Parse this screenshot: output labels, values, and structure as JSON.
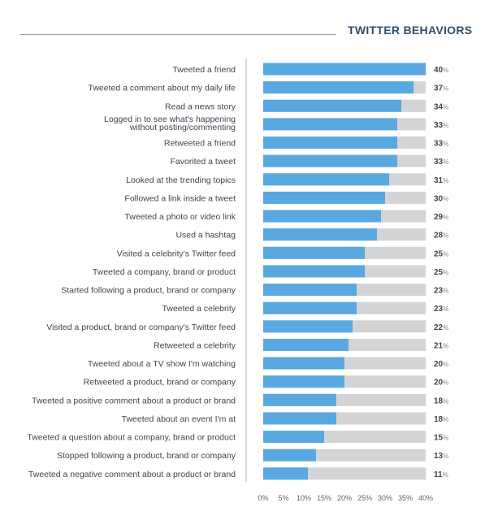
{
  "header": {
    "title": "TWITTER BEHAVIORS"
  },
  "chart_data": {
    "type": "bar",
    "orientation": "horizontal",
    "stacked_background": true,
    "title": "TWITTER BEHAVIORS",
    "xlabel": "",
    "ylabel": "",
    "xlim": [
      0,
      40
    ],
    "x_ticks": [
      "0%",
      "5%",
      "10%",
      "15%",
      "20%",
      "25%",
      "30%",
      "35%",
      "40%"
    ],
    "value_suffix": "%",
    "colors": {
      "bar": "#5aa8e0",
      "track": "#d3d4d6",
      "label": "#3c4650",
      "title": "#2f4f69"
    },
    "categories": [
      "Tweeted a friend",
      "Tweeted a comment about my daily life",
      "Read a news story",
      "Logged in to see what's happening|without posting/commenting",
      "Retweeted a friend",
      "Favorited a tweet",
      "Looked at the trending topics",
      "Followed a link inside a tweet",
      "Tweeted a photo or video link",
      "Used a hashtag",
      "Visited a celebrity's Twitter feed",
      "Tweeted a company, brand or product",
      "Started following a product, brand or company",
      "Tweeted a celebrity",
      "Visited a product, brand or company's Twitter feed",
      "Retweeted a celebrity",
      "Tweeted about a TV show I'm watching",
      "Retweeted a product, brand or company",
      "Tweeted a positive comment about a product or brand",
      "Tweeted about an event I'm at",
      "Tweeted a question about a company, brand or product",
      "Stopped following a product, brand or company",
      "Tweeted a negative comment about a product or brand"
    ],
    "values": [
      40,
      37,
      34,
      33,
      33,
      33,
      31,
      30,
      29,
      28,
      25,
      25,
      23,
      23,
      22,
      21,
      20,
      20,
      18,
      18,
      15,
      13,
      11
    ]
  }
}
